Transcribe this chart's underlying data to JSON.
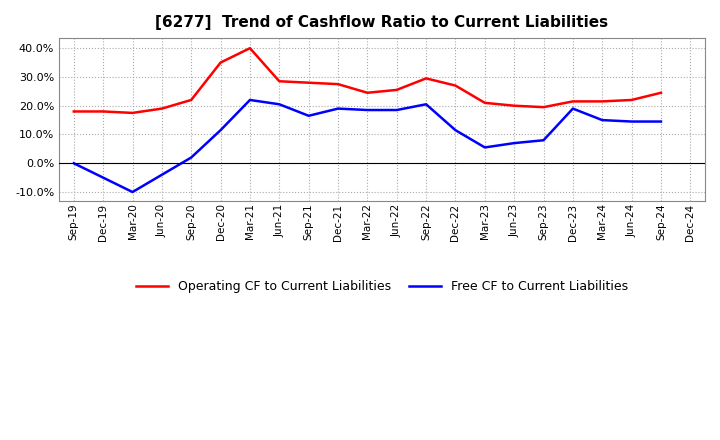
{
  "title": "[6277]  Trend of Cashflow Ratio to Current Liabilities",
  "x_labels": [
    "Sep-19",
    "Dec-19",
    "Mar-20",
    "Jun-20",
    "Sep-20",
    "Dec-20",
    "Mar-21",
    "Jun-21",
    "Sep-21",
    "Dec-21",
    "Mar-22",
    "Jun-22",
    "Sep-22",
    "Dec-22",
    "Mar-23",
    "Jun-23",
    "Sep-23",
    "Dec-23",
    "Mar-24",
    "Jun-24",
    "Sep-24",
    "Dec-24"
  ],
  "operating_cf": [
    0.18,
    0.18,
    0.175,
    0.19,
    0.22,
    0.35,
    0.4,
    0.285,
    0.28,
    0.275,
    0.245,
    0.255,
    0.295,
    0.27,
    0.21,
    0.2,
    0.195,
    0.215,
    0.215,
    0.22,
    0.245,
    null
  ],
  "free_cf": [
    0.0,
    -0.05,
    -0.1,
    -0.04,
    0.02,
    0.115,
    0.22,
    0.205,
    0.165,
    0.19,
    0.185,
    0.185,
    0.205,
    0.115,
    0.055,
    0.07,
    0.08,
    0.19,
    0.15,
    0.145,
    0.145,
    null
  ],
  "operating_color": "#FF0000",
  "free_color": "#0000FF",
  "ylim": [
    -0.13,
    0.435
  ],
  "yticks": [
    -0.1,
    0.0,
    0.1,
    0.2,
    0.3,
    0.4
  ],
  "background_color": "#FFFFFF",
  "grid_color": "#AAAAAA"
}
